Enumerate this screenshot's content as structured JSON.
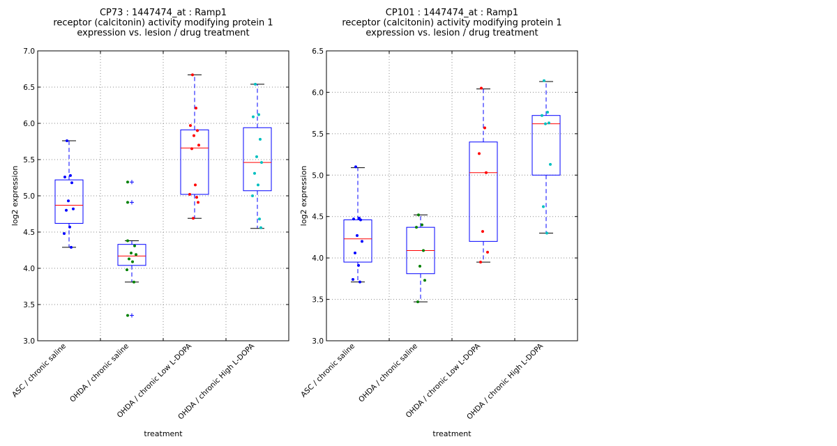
{
  "chart_data": [
    {
      "type": "box",
      "title_lines": [
        "CP73 : 1447474_at : Ramp1",
        "receptor (calcitonin) activity modifying protein 1",
        "expression vs. lesion / drug treatment"
      ],
      "xlabel": "treatment",
      "ylabel": "log2 expression",
      "ylim": [
        3.0,
        7.0
      ],
      "yticks": [
        "3.0",
        "3.5",
        "4.0",
        "4.5",
        "5.0",
        "5.5",
        "6.0",
        "6.5",
        "7.0"
      ],
      "grid": true,
      "categories": [
        "ASC / chronic saline",
        "OHDA / chronic saline",
        "OHDA / chronic Low L-DOPA",
        "OHDA / chronic High L-DOPA"
      ],
      "series": [
        {
          "name": "ASC / chronic saline",
          "color": "#0000ff",
          "q1": 4.62,
          "median": 4.87,
          "q3": 5.22,
          "whisker_low": 4.29,
          "whisker_high": 5.76,
          "outliers": [],
          "points": [
            5.76,
            5.28,
            5.26,
            5.18,
            4.93,
            4.82,
            4.8,
            4.57,
            4.48,
            4.29
          ]
        },
        {
          "name": "OHDA / chronic saline",
          "color": "#008000",
          "q1": 4.04,
          "median": 4.17,
          "q3": 4.33,
          "whisker_low": 3.81,
          "whisker_high": 4.38,
          "outliers": [
            5.19,
            4.91,
            3.35
          ],
          "points": [
            5.19,
            4.91,
            4.38,
            4.31,
            4.21,
            4.19,
            4.13,
            4.09,
            3.98,
            3.81,
            3.35
          ]
        },
        {
          "name": "OHDA / chronic Low L-DOPA",
          "color": "#ff0000",
          "q1": 5.02,
          "median": 5.66,
          "q3": 5.91,
          "whisker_low": 4.69,
          "whisker_high": 6.67,
          "outliers": [],
          "points": [
            6.67,
            6.21,
            5.97,
            5.9,
            5.83,
            5.7,
            5.65,
            5.15,
            5.02,
            4.98,
            4.91,
            4.69
          ]
        },
        {
          "name": "OHDA / chronic High L-DOPA",
          "color": "#00bfbf",
          "q1": 5.07,
          "median": 5.46,
          "q3": 5.94,
          "whisker_low": 4.55,
          "whisker_high": 6.54,
          "outliers": [],
          "points": [
            6.54,
            6.12,
            6.09,
            5.78,
            5.54,
            5.46,
            5.31,
            5.15,
            5.0,
            4.68,
            4.56
          ]
        }
      ]
    },
    {
      "type": "box",
      "title_lines": [
        "CP101 : 1447474_at : Ramp1",
        "receptor (calcitonin) activity modifying protein 1",
        "expression vs. lesion / drug treatment"
      ],
      "xlabel": "treatment",
      "ylabel": "log2 expression",
      "ylim": [
        3.0,
        6.5
      ],
      "yticks": [
        "3.0",
        "3.5",
        "4.0",
        "4.5",
        "5.0",
        "5.5",
        "6.0",
        "6.5"
      ],
      "grid": true,
      "categories": [
        "ASC / chronic saline",
        "OHDA / chronic saline",
        "OHDA / chronic Low L-DOPA",
        "OHDA / chronic High L-DOPA"
      ],
      "series": [
        {
          "name": "ASC / chronic saline",
          "color": "#0000ff",
          "q1": 3.95,
          "median": 4.23,
          "q3": 4.46,
          "whisker_low": 3.71,
          "whisker_high": 5.09,
          "outliers": [],
          "points": [
            5.1,
            4.48,
            4.47,
            4.46,
            4.27,
            4.2,
            4.06,
            3.91,
            3.74,
            3.71
          ]
        },
        {
          "name": "OHDA / chronic saline",
          "color": "#008000",
          "q1": 3.81,
          "median": 4.09,
          "q3": 4.37,
          "whisker_low": 3.47,
          "whisker_high": 4.52,
          "outliers": [],
          "points": [
            4.52,
            4.4,
            4.37,
            4.09,
            3.9,
            3.73,
            3.47
          ]
        },
        {
          "name": "OHDA / chronic Low L-DOPA",
          "color": "#ff0000",
          "q1": 4.2,
          "median": 5.03,
          "q3": 5.4,
          "whisker_low": 3.95,
          "whisker_high": 6.04,
          "outliers": [],
          "points": [
            6.05,
            5.57,
            5.26,
            5.03,
            4.32,
            4.07,
            3.95
          ]
        },
        {
          "name": "OHDA / chronic High L-DOPA",
          "color": "#00bfbf",
          "q1": 5.0,
          "median": 5.62,
          "q3": 5.72,
          "whisker_low": 4.3,
          "whisker_high": 6.13,
          "outliers": [],
          "points": [
            6.14,
            5.76,
            5.72,
            5.63,
            5.62,
            5.13,
            4.62,
            4.3
          ]
        }
      ]
    }
  ]
}
